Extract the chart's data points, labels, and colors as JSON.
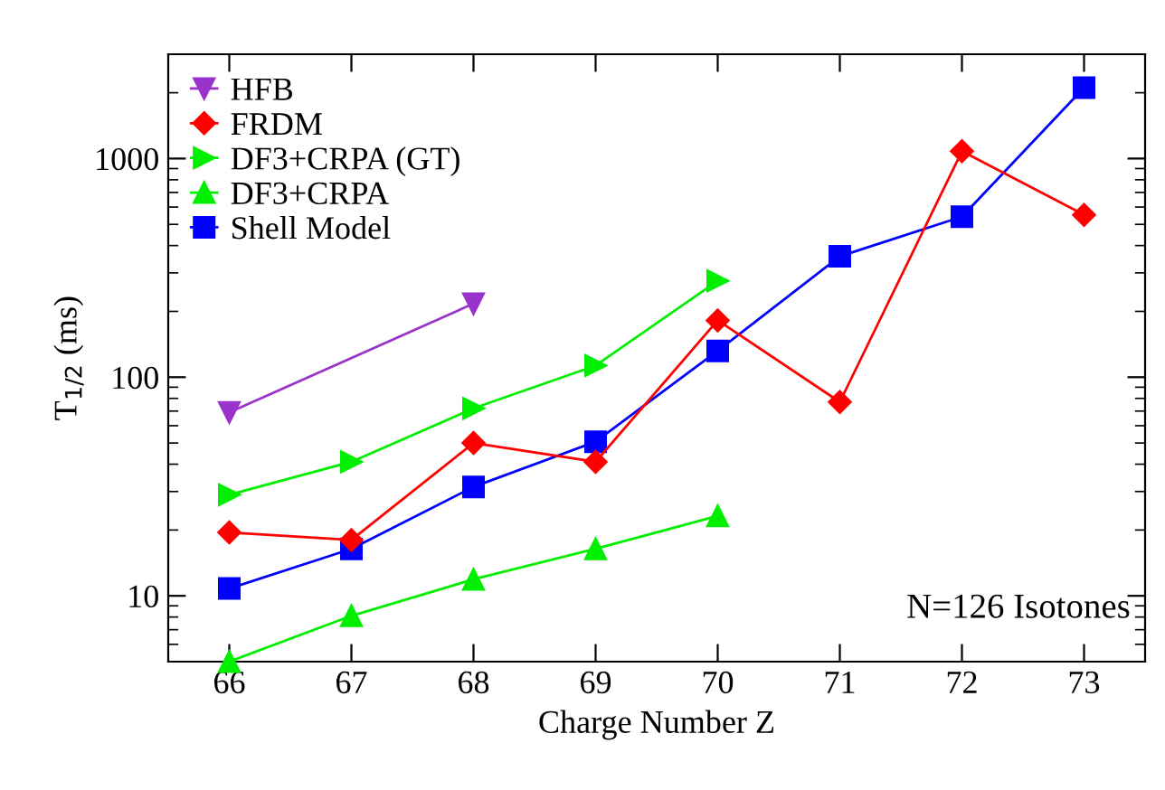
{
  "chart_data": {
    "type": "line",
    "xlabel": "Charge Number Z",
    "ylabel": "T$_{1/2}$ (ms)",
    "log": "y",
    "xlim": [
      65.5,
      73.5
    ],
    "ylim": [
      5,
      3000
    ],
    "xticks": [
      66,
      67,
      68,
      69,
      70,
      71,
      72,
      73
    ],
    "yticks": [
      10,
      100,
      1000
    ],
    "grid": false,
    "legend": "top left",
    "annotations": [
      "N=126 Isotones"
    ],
    "series": [
      {
        "name": "HFB",
        "color": "#9933cc",
        "marker": "triangle_down",
        "x": [
          66,
          68
        ],
        "values": [
          69,
          217
        ]
      },
      {
        "name": "FRDM",
        "color": "#ff0000",
        "marker": "diamond",
        "x": [
          66,
          67,
          68,
          69,
          70,
          71,
          72,
          73
        ],
        "values": [
          19.5,
          18,
          50,
          41,
          182,
          77,
          1080,
          553
        ]
      },
      {
        "name": "DF3+CRPA (GT)",
        "color": "#00ee00",
        "marker": "triangle_right",
        "x": [
          66,
          67,
          68,
          69,
          70
        ],
        "values": [
          29,
          41,
          72,
          113,
          276
        ]
      },
      {
        "name": "DF3+CRPA",
        "color": "#00ee00",
        "marker": "triangle",
        "x": [
          66,
          67,
          68,
          69,
          70
        ],
        "values": [
          5,
          8.1,
          11.9,
          16.4,
          23.2
        ]
      },
      {
        "name": "Shell Model",
        "color": "#0000ff",
        "marker": "square",
        "x": [
          66,
          67,
          68,
          69,
          70,
          71,
          72,
          73
        ],
        "values": [
          10.8,
          16.4,
          31.5,
          50.7,
          132,
          357,
          542,
          2110
        ]
      }
    ]
  }
}
